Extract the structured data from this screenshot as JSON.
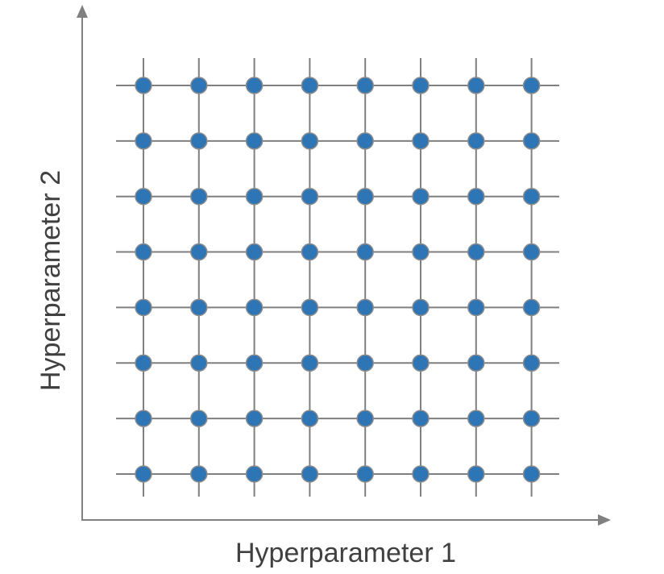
{
  "diagram": {
    "x_axis_label": "Hyperparameter 1",
    "y_axis_label": "Hyperparameter 2",
    "grid": {
      "columns": 8,
      "rows": 8
    },
    "colors": {
      "point_fill": "#2e75b6",
      "line": "#7f7f7f",
      "axis": "#808080"
    }
  }
}
